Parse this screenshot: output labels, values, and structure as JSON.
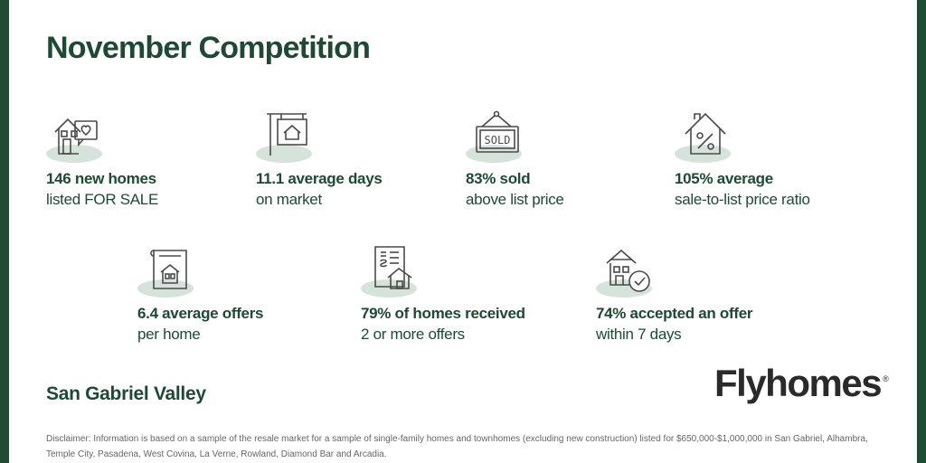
{
  "title": "November Competition",
  "stats": [
    {
      "icon": "house-heart-icon",
      "line1": "146 new homes",
      "line2": "listed FOR SALE"
    },
    {
      "icon": "for-sale-sign-icon",
      "line1": "11.1 average days",
      "line2": "on market"
    },
    {
      "icon": "sold-sign-icon",
      "line1": "83% sold",
      "line2": "above list price"
    },
    {
      "icon": "house-percent-icon",
      "line1": "105% average",
      "line2": "sale-to-list price ratio"
    },
    {
      "icon": "house-listing-icon",
      "line1": "6.4  average offers",
      "line2": "per home"
    },
    {
      "icon": "offer-document-icon",
      "line1": "79% of homes received",
      "line2": "2 or more offers"
    },
    {
      "icon": "house-check-icon",
      "line1": "74% accepted an offer",
      "line2": "within 7 days"
    }
  ],
  "region": "San Gabriel Valley",
  "brand": {
    "name": "Flyhomes",
    "mark": "®"
  },
  "disclaimer": "Disclaimer: Information is based on a sample of the resale market for a sample of single-family homes and townhomes (excluding new construction) listed for $650,000-$1,000,000 in San Gabriel, Alhambra, Temple City, Pasadena, West Covina, La Verne, Rowland, Diamond Bar and Arcadia.",
  "colors": {
    "brand_green": "#1d4a33",
    "frame": "#1e4d34",
    "icon_bg": "#d6e3db"
  }
}
